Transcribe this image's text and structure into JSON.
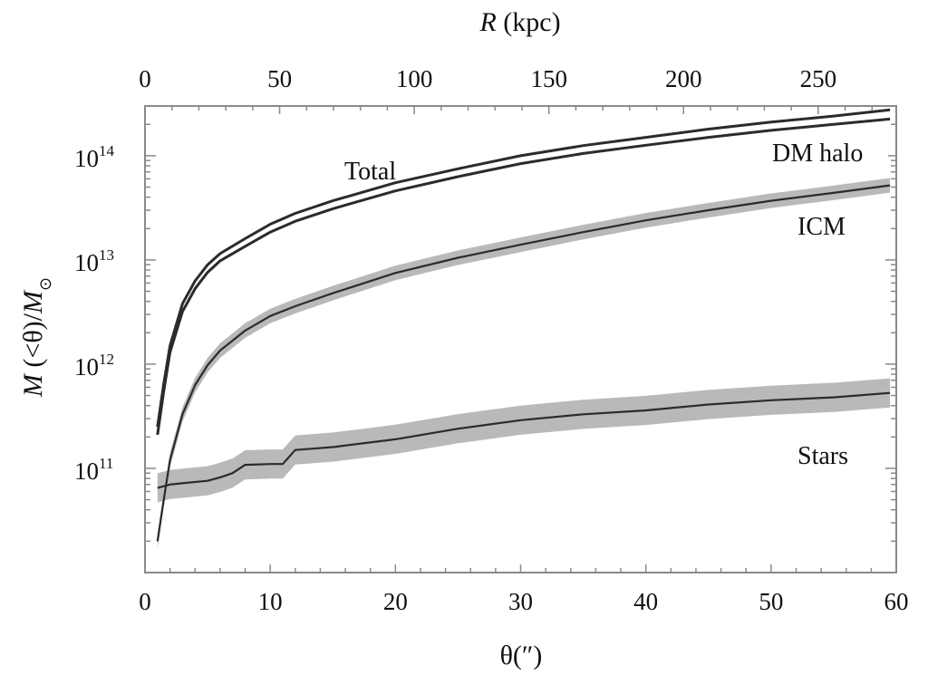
{
  "chart_data": {
    "type": "line",
    "xlabel": "θ(″)",
    "x2label_italic": "R",
    "x2label_rest": " (kpc)",
    "ylabel_m1": "M",
    "ylabel_mid": " (<θ)/",
    "ylabel_m2": "M",
    "ylabel_sub": "⊙",
    "xlim": [
      0,
      60
    ],
    "x2lim": [
      0,
      279
    ],
    "ylim": [
      10000000000,
      300000000000000
    ],
    "yscale": "log",
    "x_ticks": [
      "0",
      "10",
      "20",
      "30",
      "40",
      "50",
      "60"
    ],
    "x2_ticks": [
      "0",
      "50",
      "100",
      "150",
      "200",
      "250"
    ],
    "y_tick_exponents": [
      "11",
      "12",
      "13",
      "14"
    ],
    "y_tick_base": "10",
    "series": [
      {
        "name": "Total",
        "band": false,
        "x": [
          1,
          1.5,
          2,
          3,
          4,
          5,
          6,
          8,
          10,
          12,
          15,
          20,
          25,
          30,
          35,
          40,
          45,
          50,
          55,
          59.5
        ],
        "y": [
          250000000000.0,
          650000000000.0,
          1500000000000.0,
          3800000000000.0,
          6300000000000.0,
          9000000000000.0,
          11500000000000.0,
          16000000000000.0,
          22000000000000.0,
          28000000000000.0,
          37000000000000.0,
          55000000000000.0,
          75000000000000.0,
          100000000000000.0,
          125000000000000.0,
          150000000000000.0,
          180000000000000.0,
          210000000000000.0,
          240000000000000.0,
          275000000000000.0
        ]
      },
      {
        "name": "DM halo",
        "band": false,
        "x": [
          1,
          1.5,
          2,
          3,
          4,
          5,
          6,
          8,
          10,
          12,
          15,
          20,
          25,
          30,
          35,
          40,
          45,
          50,
          55,
          59.5
        ],
        "y": [
          210000000000.0,
          550000000000.0,
          1300000000000.0,
          3200000000000.0,
          5300000000000.0,
          7600000000000.0,
          9800000000000.0,
          13500000000000.0,
          18500000000000.0,
          23500000000000.0,
          31000000000000.0,
          46000000000000.0,
          63000000000000.0,
          84000000000000.0,
          105000000000000.0,
          126000000000000.0,
          150000000000000.0,
          175000000000000.0,
          200000000000000.0,
          225000000000000.0
        ]
      },
      {
        "name": "ICM",
        "band": true,
        "x": [
          1,
          1.5,
          2,
          3,
          4,
          5,
          6,
          8,
          10,
          12,
          15,
          20,
          25,
          30,
          35,
          40,
          45,
          50,
          55,
          59.5
        ],
        "y": [
          20000000000.0,
          50000000000.0,
          120000000000.0,
          330000000000.0,
          630000000000.0,
          980000000000.0,
          1350000000000.0,
          2100000000000.0,
          2900000000000.0,
          3600000000000.0,
          4800000000000.0,
          7500000000000.0,
          10500000000000.0,
          14000000000000.0,
          18500000000000.0,
          24000000000000.0,
          30000000000000.0,
          37000000000000.0,
          44000000000000.0,
          52000000000000.0
        ]
      },
      {
        "name": "Stars",
        "band": true,
        "x": [
          1,
          2,
          3,
          5,
          6,
          7,
          8,
          10,
          11,
          12,
          15,
          20,
          25,
          30,
          35,
          40,
          45,
          50,
          55,
          59.5
        ],
        "y": [
          65000000000.0,
          70000000000.0,
          72000000000.0,
          76000000000.0,
          82000000000.0,
          90000000000.0,
          108000000000.0,
          110000000000.0,
          110000000000.0,
          150000000000.0,
          160000000000.0,
          190000000000.0,
          240000000000.0,
          290000000000.0,
          330000000000.0,
          360000000000.0,
          410000000000.0,
          450000000000.0,
          480000000000.0,
          530000000000.0
        ]
      }
    ],
    "colors": {
      "line": "#2b2b2b",
      "band": "#b9b9b9",
      "frame": "#8a8a8a"
    }
  }
}
